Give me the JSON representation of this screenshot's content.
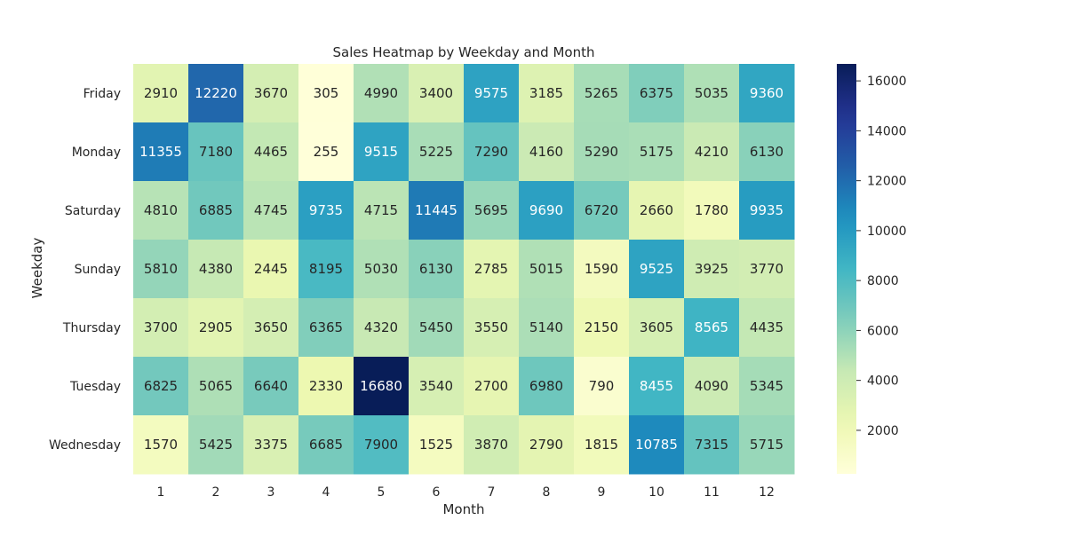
{
  "chart_data": {
    "type": "heatmap",
    "title": "Sales Heatmap by Weekday and Month",
    "xlabel": "Month",
    "ylabel": "Weekday",
    "x": [
      "1",
      "2",
      "3",
      "4",
      "5",
      "6",
      "7",
      "8",
      "9",
      "10",
      "11",
      "12"
    ],
    "y": [
      "Friday",
      "Monday",
      "Saturday",
      "Sunday",
      "Thursday",
      "Tuesday",
      "Wednesday"
    ],
    "values": [
      [
        2910,
        12220,
        3670,
        305,
        4990,
        3400,
        9575,
        3185,
        5265,
        6375,
        5035,
        9360
      ],
      [
        11355,
        7180,
        4465,
        255,
        9515,
        5225,
        7290,
        4160,
        5290,
        5175,
        4210,
        6130
      ],
      [
        4810,
        6885,
        4745,
        9735,
        4715,
        11445,
        5695,
        9690,
        6720,
        2660,
        1780,
        9935
      ],
      [
        5810,
        4380,
        2445,
        8195,
        5030,
        6130,
        2785,
        5015,
        1590,
        9525,
        3925,
        3770
      ],
      [
        3700,
        2905,
        3650,
        6365,
        4320,
        5450,
        3550,
        5140,
        2150,
        3605,
        8565,
        4435
      ],
      [
        6825,
        5065,
        6640,
        2330,
        16680,
        3540,
        2700,
        6980,
        790,
        8455,
        4090,
        5345
      ],
      [
        1570,
        5425,
        3375,
        6685,
        7900,
        1525,
        3870,
        2790,
        1815,
        10785,
        7315,
        5715
      ]
    ],
    "colormap": "YlGnBu",
    "vmin": 255,
    "vmax": 16680,
    "colorbar_ticks": [
      2000,
      4000,
      6000,
      8000,
      10000,
      12000,
      14000,
      16000
    ],
    "annotations": true,
    "grid": false
  }
}
